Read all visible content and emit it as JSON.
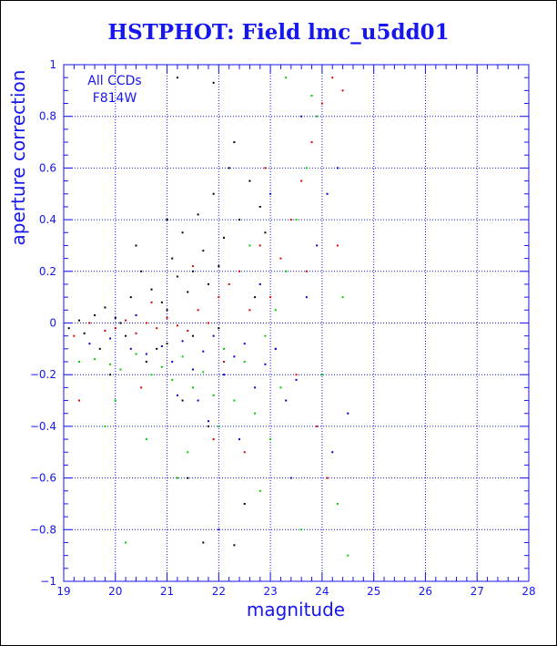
{
  "chart_data": {
    "type": "scatter",
    "title": "HSTPHOT: Field lmc_u5dd01",
    "xlabel": "magnitude",
    "ylabel": "aperture correction",
    "xlim": [
      19,
      28
    ],
    "ylim": [
      -1,
      1
    ],
    "xticks": [
      "19",
      "20",
      "21",
      "22",
      "23",
      "24",
      "25",
      "26",
      "27",
      "28"
    ],
    "yticks": [
      "−1",
      "−0.8",
      "−0.6",
      "−0.4",
      "−0.2",
      "0",
      "0.2",
      "0.4",
      "0.6",
      "0.8",
      "1"
    ],
    "grid": true,
    "annotation": [
      "All CCDs",
      "F814W"
    ],
    "series": [
      {
        "color": "#000000",
        "points": [
          [
            19.1,
            -0.02
          ],
          [
            19.3,
            0.01
          ],
          [
            19.4,
            -0.04
          ],
          [
            19.6,
            0.03
          ],
          [
            19.8,
            0.06
          ],
          [
            20.0,
            0.02
          ],
          [
            20.2,
            -0.05
          ],
          [
            20.3,
            0.1
          ],
          [
            20.5,
            0.2
          ],
          [
            20.7,
            0.13
          ],
          [
            20.8,
            -0.1
          ],
          [
            20.9,
            0.08
          ],
          [
            21.0,
            0.05
          ],
          [
            21.1,
            0.25
          ],
          [
            21.2,
            0.18
          ],
          [
            21.3,
            0.35
          ],
          [
            21.4,
            0.12
          ],
          [
            21.5,
            0.2
          ],
          [
            21.6,
            0.42
          ],
          [
            21.7,
            0.28
          ],
          [
            21.8,
            0.15
          ],
          [
            21.9,
            0.5
          ],
          [
            22.0,
            0.22
          ],
          [
            22.1,
            0.33
          ],
          [
            22.2,
            0.6
          ],
          [
            22.3,
            0.7
          ],
          [
            22.4,
            0.4
          ],
          [
            22.6,
            0.55
          ],
          [
            22.8,
            0.45
          ],
          [
            21.2,
            0.95
          ],
          [
            21.9,
            0.93
          ],
          [
            21.4,
            -0.6
          ],
          [
            21.7,
            -0.85
          ],
          [
            22.3,
            -0.86
          ],
          [
            21.0,
            -0.08
          ],
          [
            20.6,
            -0.15
          ],
          [
            22.0,
            -0.02
          ],
          [
            21.5,
            -0.05
          ],
          [
            19.7,
            -0.1
          ],
          [
            20.1,
            0.0
          ],
          [
            21.3,
            -0.3
          ],
          [
            22.5,
            -0.7
          ],
          [
            21.8,
            -0.4
          ],
          [
            22.7,
            0.1
          ],
          [
            21.0,
            0.4
          ],
          [
            20.4,
            0.3
          ],
          [
            19.9,
            -0.2
          ],
          [
            22.9,
            0.35
          ]
        ]
      },
      {
        "color": "#dd0000",
        "points": [
          [
            19.2,
            -0.05
          ],
          [
            19.5,
            0.0
          ],
          [
            19.8,
            -0.03
          ],
          [
            20.0,
            -0.02
          ],
          [
            20.2,
            0.01
          ],
          [
            20.4,
            -0.04
          ],
          [
            20.6,
            0.0
          ],
          [
            20.8,
            -0.02
          ],
          [
            21.0,
            0.02
          ],
          [
            21.2,
            -0.01
          ],
          [
            21.4,
            -0.03
          ],
          [
            21.6,
            0.05
          ],
          [
            21.8,
            0.0
          ],
          [
            22.0,
            0.1
          ],
          [
            22.2,
            0.15
          ],
          [
            22.4,
            0.2
          ],
          [
            22.6,
            0.05
          ],
          [
            22.8,
            0.3
          ],
          [
            23.0,
            0.1
          ],
          [
            23.2,
            0.25
          ],
          [
            23.4,
            0.4
          ],
          [
            23.6,
            0.55
          ],
          [
            23.8,
            0.7
          ],
          [
            24.0,
            0.85
          ],
          [
            24.2,
            0.95
          ],
          [
            24.4,
            0.9
          ],
          [
            23.5,
            -0.2
          ],
          [
            23.9,
            -0.4
          ],
          [
            24.1,
            -0.6
          ],
          [
            22.5,
            -0.5
          ],
          [
            21.9,
            -0.45
          ],
          [
            20.5,
            -0.25
          ],
          [
            19.3,
            -0.3
          ],
          [
            23.1,
            -0.1
          ],
          [
            24.3,
            0.3
          ],
          [
            22.9,
            0.6
          ],
          [
            21.5,
            0.22
          ],
          [
            20.7,
            0.08
          ],
          [
            22.1,
            -0.15
          ],
          [
            23.7,
            0.2
          ]
        ]
      },
      {
        "color": "#0000cc",
        "points": [
          [
            19.5,
            -0.08
          ],
          [
            19.9,
            -0.06
          ],
          [
            20.3,
            -0.1
          ],
          [
            20.6,
            -0.12
          ],
          [
            20.9,
            -0.09
          ],
          [
            21.1,
            -0.15
          ],
          [
            21.3,
            -0.07
          ],
          [
            21.5,
            -0.18
          ],
          [
            21.7,
            -0.11
          ],
          [
            21.9,
            -0.05
          ],
          [
            22.1,
            -0.2
          ],
          [
            22.3,
            -0.13
          ],
          [
            22.5,
            -0.08
          ],
          [
            22.7,
            -0.25
          ],
          [
            22.9,
            -0.16
          ],
          [
            23.1,
            -0.1
          ],
          [
            23.3,
            -0.3
          ],
          [
            23.5,
            -0.22
          ],
          [
            23.7,
            0.1
          ],
          [
            23.9,
            0.3
          ],
          [
            24.1,
            0.5
          ],
          [
            24.3,
            0.6
          ],
          [
            24.5,
            -0.35
          ],
          [
            24.2,
            -0.5
          ],
          [
            23.6,
            0.8
          ],
          [
            23.0,
            0.5
          ],
          [
            22.4,
            -0.45
          ],
          [
            21.8,
            -0.38
          ],
          [
            21.2,
            -0.28
          ],
          [
            20.4,
            0.03
          ],
          [
            22.8,
            0.15
          ],
          [
            23.4,
            -0.6
          ],
          [
            22.0,
            -0.8
          ],
          [
            21.6,
            -0.3
          ]
        ]
      },
      {
        "color": "#00cc00",
        "points": [
          [
            19.3,
            -0.15
          ],
          [
            19.6,
            -0.14
          ],
          [
            19.9,
            -0.16
          ],
          [
            20.1,
            -0.18
          ],
          [
            20.4,
            -0.12
          ],
          [
            20.7,
            -0.2
          ],
          [
            20.9,
            -0.17
          ],
          [
            21.1,
            -0.22
          ],
          [
            21.3,
            -0.13
          ],
          [
            21.5,
            -0.25
          ],
          [
            21.7,
            -0.19
          ],
          [
            21.9,
            -0.28
          ],
          [
            22.1,
            -0.1
          ],
          [
            22.3,
            -0.3
          ],
          [
            22.5,
            -0.15
          ],
          [
            22.7,
            -0.35
          ],
          [
            22.9,
            -0.05
          ],
          [
            23.1,
            0.05
          ],
          [
            23.3,
            0.2
          ],
          [
            23.5,
            0.4
          ],
          [
            23.7,
            0.6
          ],
          [
            23.9,
            0.8
          ],
          [
            23.8,
            0.88
          ],
          [
            23.3,
            0.95
          ],
          [
            24.0,
            -0.2
          ],
          [
            24.3,
            -0.7
          ],
          [
            24.5,
            -0.9
          ],
          [
            23.6,
            -0.8
          ],
          [
            22.8,
            -0.65
          ],
          [
            21.4,
            -0.5
          ],
          [
            20.6,
            -0.45
          ],
          [
            19.8,
            -0.4
          ],
          [
            20.2,
            -0.85
          ],
          [
            22.6,
            0.3
          ],
          [
            23.0,
            -0.45
          ],
          [
            21.2,
            -0.6
          ],
          [
            20.0,
            -0.3
          ],
          [
            22.0,
            -0.4
          ],
          [
            23.2,
            -0.25
          ],
          [
            24.4,
            0.1
          ]
        ]
      }
    ]
  }
}
